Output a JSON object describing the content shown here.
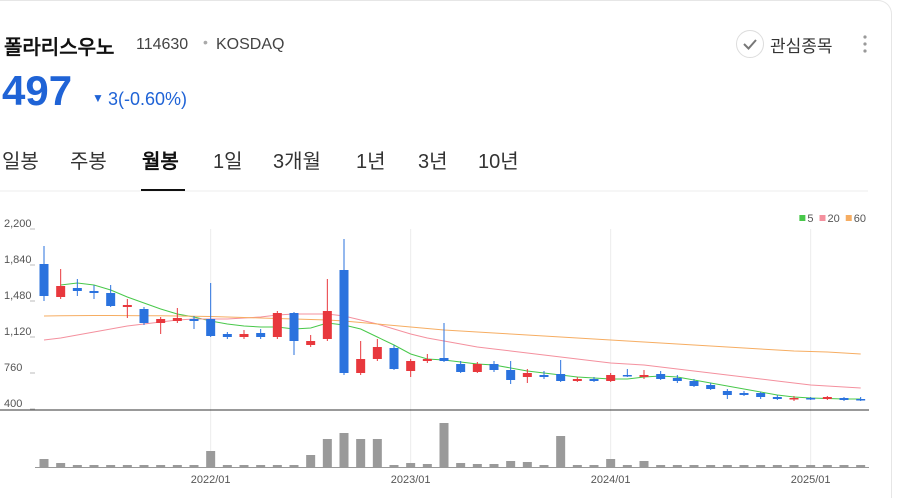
{
  "header": {
    "name": "폴라리스우노",
    "code": "114630",
    "market": "KOSDAQ",
    "price": "497",
    "change": "3(-0.60%)",
    "watch": "관심종목"
  },
  "tabs": {
    "items": [
      "일봉",
      "주봉",
      "월봉",
      "1일",
      "3개월",
      "1년",
      "3년",
      "10년"
    ],
    "active": 2
  },
  "chart_data": {
    "type": "candlestick",
    "categories": [
      null,
      null,
      null,
      null,
      null,
      null,
      null,
      null,
      null,
      null,
      "2022/01",
      null,
      null,
      null,
      null,
      null,
      null,
      null,
      null,
      null,
      null,
      null,
      "2023/01",
      null,
      null,
      null,
      null,
      null,
      null,
      null,
      null,
      null,
      null,
      null,
      "2024/01",
      null,
      null,
      null,
      null,
      null,
      null,
      null,
      null,
      null,
      null,
      null,
      "2025/01",
      null,
      null,
      null
    ],
    "open": [
      1850,
      1520,
      1610,
      1580,
      1560,
      1420,
      1400,
      1260,
      1280,
      1300,
      1300,
      1150,
      1120,
      1160,
      1120,
      1360,
      1040,
      1100,
      1790,
      760,
      900,
      1010,
      780,
      880,
      910,
      850,
      770,
      850,
      790,
      720,
      740,
      750,
      680,
      700,
      680,
      740,
      720,
      750,
      710,
      680,
      640,
      580,
      560,
      560,
      520,
      500,
      510,
      500,
      510,
      500
    ],
    "high": [
      2030,
      1800,
      1700,
      1640,
      1640,
      1500,
      1420,
      1320,
      1410,
      1330,
      1660,
      1170,
      1190,
      1200,
      1380,
      1370,
      1140,
      1700,
      2100,
      1080,
      1100,
      1040,
      900,
      950,
      1260,
      880,
      870,
      880,
      880,
      800,
      780,
      890,
      720,
      720,
      760,
      800,
      790,
      780,
      740,
      700,
      660,
      600,
      580,
      570,
      540,
      530,
      520,
      530,
      520,
      520
    ],
    "low": [
      1480,
      1500,
      1530,
      1500,
      1420,
      1310,
      1240,
      1150,
      1260,
      1200,
      1120,
      1100,
      1100,
      1100,
      1100,
      940,
      1020,
      1080,
      740,
      740,
      880,
      790,
      720,
      860,
      870,
      760,
      760,
      770,
      650,
      660,
      700,
      670,
      670,
      670,
      670,
      720,
      700,
      690,
      660,
      620,
      590,
      500,
      530,
      500,
      490,
      480,
      490,
      490,
      480,
      480
    ],
    "close": [
      1530,
      1630,
      1580,
      1560,
      1430,
      1440,
      1260,
      1300,
      1310,
      1280,
      1130,
      1120,
      1150,
      1120,
      1360,
      1080,
      1080,
      1380,
      760,
      900,
      1020,
      800,
      880,
      900,
      880,
      770,
      850,
      790,
      690,
      760,
      720,
      680,
      700,
      680,
      740,
      730,
      740,
      700,
      680,
      630,
      600,
      540,
      540,
      520,
      500,
      510,
      500,
      520,
      490,
      497
    ],
    "up_color": "#e8383d",
    "down_color": "#2a72de",
    "series": [
      {
        "name": "5",
        "color": "#48c84a",
        "values": [
          null,
          1640,
          1660,
          1640,
          1590,
          1520,
          1460,
          1400,
          1350,
          1320,
          1280,
          1250,
          1230,
          1220,
          1220,
          1200,
          1210,
          1260,
          1240,
          1200,
          1120,
          1040,
          950,
          900,
          890,
          870,
          850,
          840,
          810,
          780,
          760,
          740,
          720,
          710,
          700,
          700,
          720,
          730,
          720,
          690,
          660,
          630,
          600,
          570,
          540,
          520,
          510,
          505,
          500,
          500
        ]
      },
      {
        "name": "20",
        "color": "#f4909e",
        "values": [
          1090,
          1110,
          1140,
          1170,
          1200,
          1230,
          1250,
          1270,
          1290,
          1300,
          1300,
          1300,
          1310,
          1320,
          1340,
          1350,
          1350,
          1350,
          1330,
          1290,
          1250,
          1200,
          1150,
          1110,
          1080,
          1050,
          1020,
          1000,
          980,
          960,
          940,
          920,
          900,
          880,
          860,
          850,
          840,
          820,
          800,
          780,
          760,
          740,
          720,
          700,
          680,
          660,
          640,
          630,
          620,
          610
        ]
      },
      {
        "name": "60",
        "color": "#f6ad62",
        "values": [
          1330,
          1332,
          1334,
          1335,
          1335,
          1334,
          1333,
          1332,
          1330,
          1328,
          1325,
          1320,
          1315,
          1310,
          1305,
          1300,
          1295,
          1290,
          1280,
          1265,
          1250,
          1235,
          1220,
          1205,
          1190,
          1180,
          1170,
          1160,
          1150,
          1140,
          1130,
          1120,
          1110,
          1100,
          1090,
          1080,
          1070,
          1060,
          1050,
          1040,
          1030,
          1020,
          1010,
          1000,
          990,
          980,
          975,
          970,
          960,
          950
        ]
      }
    ],
    "ylim": [
      400,
      2200
    ],
    "yticks": [
      {
        "value": 2200,
        "label": "2,200"
      },
      {
        "value": 1840,
        "label": "1,840"
      },
      {
        "value": 1480,
        "label": "1,480"
      },
      {
        "value": 1120,
        "label": "1,120"
      },
      760,
      400
    ],
    "volume": [
      8,
      4,
      2,
      2,
      2,
      2,
      2,
      2,
      2,
      2,
      16,
      2,
      2,
      2,
      2,
      2,
      12,
      28,
      34,
      28,
      28,
      2,
      4,
      3,
      44,
      4,
      3,
      3,
      6,
      5,
      2,
      31,
      2,
      2,
      8,
      2,
      6,
      2,
      2,
      2,
      2,
      2,
      2,
      2,
      2,
      2,
      2,
      2,
      2,
      2
    ],
    "volume_color": "#9a9a9a",
    "volume_ylim": [
      0,
      50
    ],
    "legend": "top-right"
  }
}
